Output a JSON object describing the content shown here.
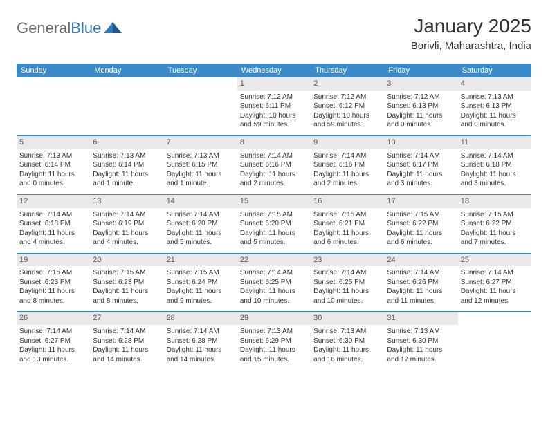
{
  "brand": {
    "part1": "General",
    "part2": "Blue"
  },
  "header": {
    "month_title": "January 2025",
    "location": "Borivli, Maharashtra, India"
  },
  "colors": {
    "header_bg": "#3b8bc8",
    "header_text": "#ffffff",
    "daynum_bg": "#e9e9e9",
    "week_border": "#3b8bc8",
    "brand_gray": "#6a6a6a",
    "brand_blue": "#2f7abf"
  },
  "weekdays": [
    "Sunday",
    "Monday",
    "Tuesday",
    "Wednesday",
    "Thursday",
    "Friday",
    "Saturday"
  ],
  "weeks": [
    [
      {
        "n": "",
        "sunrise": "",
        "sunset": "",
        "daylight": ""
      },
      {
        "n": "",
        "sunrise": "",
        "sunset": "",
        "daylight": ""
      },
      {
        "n": "",
        "sunrise": "",
        "sunset": "",
        "daylight": ""
      },
      {
        "n": "1",
        "sunrise": "Sunrise: 7:12 AM",
        "sunset": "Sunset: 6:11 PM",
        "daylight": "Daylight: 10 hours and 59 minutes."
      },
      {
        "n": "2",
        "sunrise": "Sunrise: 7:12 AM",
        "sunset": "Sunset: 6:12 PM",
        "daylight": "Daylight: 10 hours and 59 minutes."
      },
      {
        "n": "3",
        "sunrise": "Sunrise: 7:12 AM",
        "sunset": "Sunset: 6:13 PM",
        "daylight": "Daylight: 11 hours and 0 minutes."
      },
      {
        "n": "4",
        "sunrise": "Sunrise: 7:13 AM",
        "sunset": "Sunset: 6:13 PM",
        "daylight": "Daylight: 11 hours and 0 minutes."
      }
    ],
    [
      {
        "n": "5",
        "sunrise": "Sunrise: 7:13 AM",
        "sunset": "Sunset: 6:14 PM",
        "daylight": "Daylight: 11 hours and 0 minutes."
      },
      {
        "n": "6",
        "sunrise": "Sunrise: 7:13 AM",
        "sunset": "Sunset: 6:14 PM",
        "daylight": "Daylight: 11 hours and 1 minute."
      },
      {
        "n": "7",
        "sunrise": "Sunrise: 7:13 AM",
        "sunset": "Sunset: 6:15 PM",
        "daylight": "Daylight: 11 hours and 1 minute."
      },
      {
        "n": "8",
        "sunrise": "Sunrise: 7:14 AM",
        "sunset": "Sunset: 6:16 PM",
        "daylight": "Daylight: 11 hours and 2 minutes."
      },
      {
        "n": "9",
        "sunrise": "Sunrise: 7:14 AM",
        "sunset": "Sunset: 6:16 PM",
        "daylight": "Daylight: 11 hours and 2 minutes."
      },
      {
        "n": "10",
        "sunrise": "Sunrise: 7:14 AM",
        "sunset": "Sunset: 6:17 PM",
        "daylight": "Daylight: 11 hours and 3 minutes."
      },
      {
        "n": "11",
        "sunrise": "Sunrise: 7:14 AM",
        "sunset": "Sunset: 6:18 PM",
        "daylight": "Daylight: 11 hours and 3 minutes."
      }
    ],
    [
      {
        "n": "12",
        "sunrise": "Sunrise: 7:14 AM",
        "sunset": "Sunset: 6:18 PM",
        "daylight": "Daylight: 11 hours and 4 minutes."
      },
      {
        "n": "13",
        "sunrise": "Sunrise: 7:14 AM",
        "sunset": "Sunset: 6:19 PM",
        "daylight": "Daylight: 11 hours and 4 minutes."
      },
      {
        "n": "14",
        "sunrise": "Sunrise: 7:14 AM",
        "sunset": "Sunset: 6:20 PM",
        "daylight": "Daylight: 11 hours and 5 minutes."
      },
      {
        "n": "15",
        "sunrise": "Sunrise: 7:15 AM",
        "sunset": "Sunset: 6:20 PM",
        "daylight": "Daylight: 11 hours and 5 minutes."
      },
      {
        "n": "16",
        "sunrise": "Sunrise: 7:15 AM",
        "sunset": "Sunset: 6:21 PM",
        "daylight": "Daylight: 11 hours and 6 minutes."
      },
      {
        "n": "17",
        "sunrise": "Sunrise: 7:15 AM",
        "sunset": "Sunset: 6:22 PM",
        "daylight": "Daylight: 11 hours and 6 minutes."
      },
      {
        "n": "18",
        "sunrise": "Sunrise: 7:15 AM",
        "sunset": "Sunset: 6:22 PM",
        "daylight": "Daylight: 11 hours and 7 minutes."
      }
    ],
    [
      {
        "n": "19",
        "sunrise": "Sunrise: 7:15 AM",
        "sunset": "Sunset: 6:23 PM",
        "daylight": "Daylight: 11 hours and 8 minutes."
      },
      {
        "n": "20",
        "sunrise": "Sunrise: 7:15 AM",
        "sunset": "Sunset: 6:23 PM",
        "daylight": "Daylight: 11 hours and 8 minutes."
      },
      {
        "n": "21",
        "sunrise": "Sunrise: 7:15 AM",
        "sunset": "Sunset: 6:24 PM",
        "daylight": "Daylight: 11 hours and 9 minutes."
      },
      {
        "n": "22",
        "sunrise": "Sunrise: 7:14 AM",
        "sunset": "Sunset: 6:25 PM",
        "daylight": "Daylight: 11 hours and 10 minutes."
      },
      {
        "n": "23",
        "sunrise": "Sunrise: 7:14 AM",
        "sunset": "Sunset: 6:25 PM",
        "daylight": "Daylight: 11 hours and 10 minutes."
      },
      {
        "n": "24",
        "sunrise": "Sunrise: 7:14 AM",
        "sunset": "Sunset: 6:26 PM",
        "daylight": "Daylight: 11 hours and 11 minutes."
      },
      {
        "n": "25",
        "sunrise": "Sunrise: 7:14 AM",
        "sunset": "Sunset: 6:27 PM",
        "daylight": "Daylight: 11 hours and 12 minutes."
      }
    ],
    [
      {
        "n": "26",
        "sunrise": "Sunrise: 7:14 AM",
        "sunset": "Sunset: 6:27 PM",
        "daylight": "Daylight: 11 hours and 13 minutes."
      },
      {
        "n": "27",
        "sunrise": "Sunrise: 7:14 AM",
        "sunset": "Sunset: 6:28 PM",
        "daylight": "Daylight: 11 hours and 14 minutes."
      },
      {
        "n": "28",
        "sunrise": "Sunrise: 7:14 AM",
        "sunset": "Sunset: 6:28 PM",
        "daylight": "Daylight: 11 hours and 14 minutes."
      },
      {
        "n": "29",
        "sunrise": "Sunrise: 7:13 AM",
        "sunset": "Sunset: 6:29 PM",
        "daylight": "Daylight: 11 hours and 15 minutes."
      },
      {
        "n": "30",
        "sunrise": "Sunrise: 7:13 AM",
        "sunset": "Sunset: 6:30 PM",
        "daylight": "Daylight: 11 hours and 16 minutes."
      },
      {
        "n": "31",
        "sunrise": "Sunrise: 7:13 AM",
        "sunset": "Sunset: 6:30 PM",
        "daylight": "Daylight: 11 hours and 17 minutes."
      },
      {
        "n": "",
        "sunrise": "",
        "sunset": "",
        "daylight": ""
      }
    ]
  ]
}
